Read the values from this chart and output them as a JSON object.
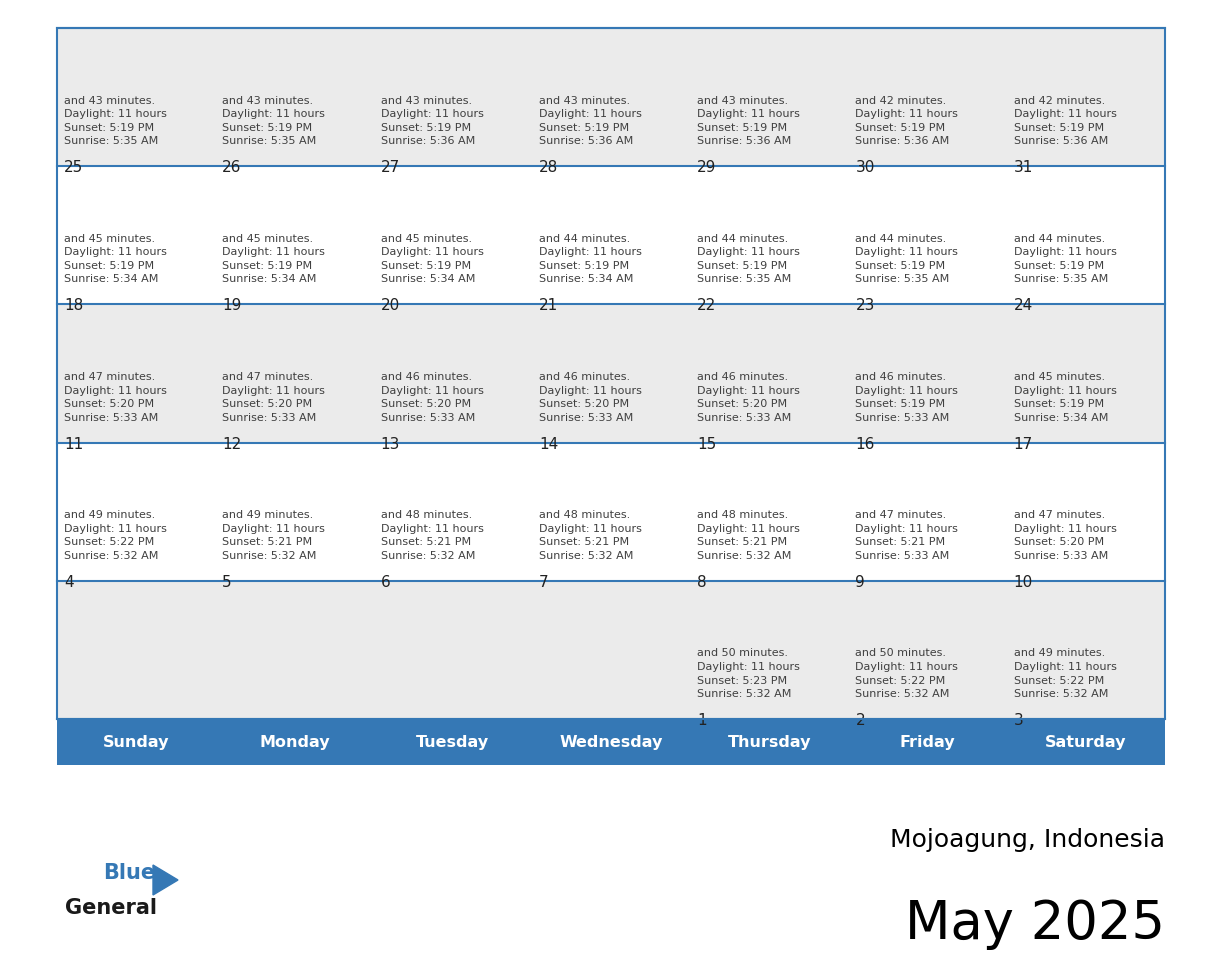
{
  "title": "May 2025",
  "subtitle": "Mojoagung, Indonesia",
  "header_color": "#3578B5",
  "header_text_color": "#FFFFFF",
  "day_names": [
    "Sunday",
    "Monday",
    "Tuesday",
    "Wednesday",
    "Thursday",
    "Friday",
    "Saturday"
  ],
  "row0_color": "#EBEBEB",
  "row1_color": "#FFFFFF",
  "border_color": "#3578B5",
  "text_color": "#404040",
  "day_num_color": "#222222",
  "calendar": [
    [
      null,
      null,
      null,
      null,
      {
        "day": "1",
        "sunrise": "5:32 AM",
        "sunset": "5:23 PM",
        "daylight_h": "11 hours",
        "daylight_m": "50 minutes"
      },
      {
        "day": "2",
        "sunrise": "5:32 AM",
        "sunset": "5:22 PM",
        "daylight_h": "11 hours",
        "daylight_m": "50 minutes"
      },
      {
        "day": "3",
        "sunrise": "5:32 AM",
        "sunset": "5:22 PM",
        "daylight_h": "11 hours",
        "daylight_m": "49 minutes"
      }
    ],
    [
      {
        "day": "4",
        "sunrise": "5:32 AM",
        "sunset": "5:22 PM",
        "daylight_h": "11 hours",
        "daylight_m": "49 minutes"
      },
      {
        "day": "5",
        "sunrise": "5:32 AM",
        "sunset": "5:21 PM",
        "daylight_h": "11 hours",
        "daylight_m": "49 minutes"
      },
      {
        "day": "6",
        "sunrise": "5:32 AM",
        "sunset": "5:21 PM",
        "daylight_h": "11 hours",
        "daylight_m": "48 minutes"
      },
      {
        "day": "7",
        "sunrise": "5:32 AM",
        "sunset": "5:21 PM",
        "daylight_h": "11 hours",
        "daylight_m": "48 minutes"
      },
      {
        "day": "8",
        "sunrise": "5:32 AM",
        "sunset": "5:21 PM",
        "daylight_h": "11 hours",
        "daylight_m": "48 minutes"
      },
      {
        "day": "9",
        "sunrise": "5:33 AM",
        "sunset": "5:21 PM",
        "daylight_h": "11 hours",
        "daylight_m": "47 minutes"
      },
      {
        "day": "10",
        "sunrise": "5:33 AM",
        "sunset": "5:20 PM",
        "daylight_h": "11 hours",
        "daylight_m": "47 minutes"
      }
    ],
    [
      {
        "day": "11",
        "sunrise": "5:33 AM",
        "sunset": "5:20 PM",
        "daylight_h": "11 hours",
        "daylight_m": "47 minutes"
      },
      {
        "day": "12",
        "sunrise": "5:33 AM",
        "sunset": "5:20 PM",
        "daylight_h": "11 hours",
        "daylight_m": "47 minutes"
      },
      {
        "day": "13",
        "sunrise": "5:33 AM",
        "sunset": "5:20 PM",
        "daylight_h": "11 hours",
        "daylight_m": "46 minutes"
      },
      {
        "day": "14",
        "sunrise": "5:33 AM",
        "sunset": "5:20 PM",
        "daylight_h": "11 hours",
        "daylight_m": "46 minutes"
      },
      {
        "day": "15",
        "sunrise": "5:33 AM",
        "sunset": "5:20 PM",
        "daylight_h": "11 hours",
        "daylight_m": "46 minutes"
      },
      {
        "day": "16",
        "sunrise": "5:33 AM",
        "sunset": "5:19 PM",
        "daylight_h": "11 hours",
        "daylight_m": "46 minutes"
      },
      {
        "day": "17",
        "sunrise": "5:34 AM",
        "sunset": "5:19 PM",
        "daylight_h": "11 hours",
        "daylight_m": "45 minutes"
      }
    ],
    [
      {
        "day": "18",
        "sunrise": "5:34 AM",
        "sunset": "5:19 PM",
        "daylight_h": "11 hours",
        "daylight_m": "45 minutes"
      },
      {
        "day": "19",
        "sunrise": "5:34 AM",
        "sunset": "5:19 PM",
        "daylight_h": "11 hours",
        "daylight_m": "45 minutes"
      },
      {
        "day": "20",
        "sunrise": "5:34 AM",
        "sunset": "5:19 PM",
        "daylight_h": "11 hours",
        "daylight_m": "45 minutes"
      },
      {
        "day": "21",
        "sunrise": "5:34 AM",
        "sunset": "5:19 PM",
        "daylight_h": "11 hours",
        "daylight_m": "44 minutes"
      },
      {
        "day": "22",
        "sunrise": "5:35 AM",
        "sunset": "5:19 PM",
        "daylight_h": "11 hours",
        "daylight_m": "44 minutes"
      },
      {
        "day": "23",
        "sunrise": "5:35 AM",
        "sunset": "5:19 PM",
        "daylight_h": "11 hours",
        "daylight_m": "44 minutes"
      },
      {
        "day": "24",
        "sunrise": "5:35 AM",
        "sunset": "5:19 PM",
        "daylight_h": "11 hours",
        "daylight_m": "44 minutes"
      }
    ],
    [
      {
        "day": "25",
        "sunrise": "5:35 AM",
        "sunset": "5:19 PM",
        "daylight_h": "11 hours",
        "daylight_m": "43 minutes"
      },
      {
        "day": "26",
        "sunrise": "5:35 AM",
        "sunset": "5:19 PM",
        "daylight_h": "11 hours",
        "daylight_m": "43 minutes"
      },
      {
        "day": "27",
        "sunrise": "5:36 AM",
        "sunset": "5:19 PM",
        "daylight_h": "11 hours",
        "daylight_m": "43 minutes"
      },
      {
        "day": "28",
        "sunrise": "5:36 AM",
        "sunset": "5:19 PM",
        "daylight_h": "11 hours",
        "daylight_m": "43 minutes"
      },
      {
        "day": "29",
        "sunrise": "5:36 AM",
        "sunset": "5:19 PM",
        "daylight_h": "11 hours",
        "daylight_m": "43 minutes"
      },
      {
        "day": "30",
        "sunrise": "5:36 AM",
        "sunset": "5:19 PM",
        "daylight_h": "11 hours",
        "daylight_m": "42 minutes"
      },
      {
        "day": "31",
        "sunrise": "5:36 AM",
        "sunset": "5:19 PM",
        "daylight_h": "11 hours",
        "daylight_m": "42 minutes"
      }
    ]
  ]
}
